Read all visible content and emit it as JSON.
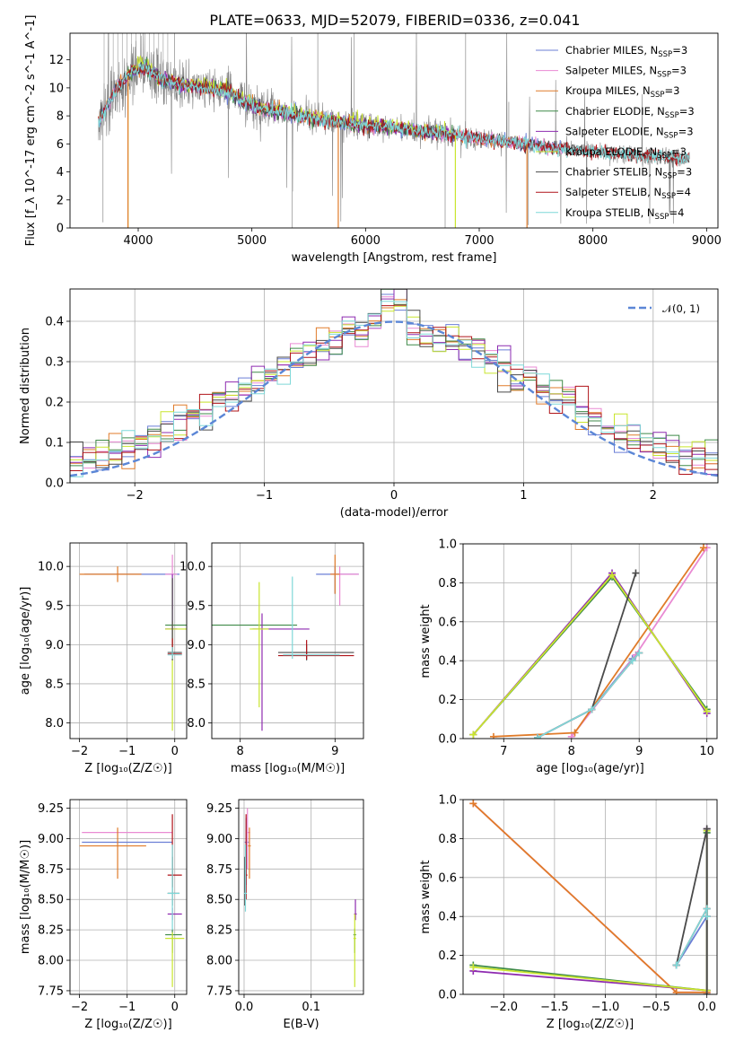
{
  "figure": {
    "title": "PLATE=0633, MJD=52079, FIBERID=0336, z=0.041"
  },
  "models": [
    {
      "name": "Chabrier MILES",
      "nssp": "3",
      "color": "#6b7fd6"
    },
    {
      "name": "Salpeter MILES",
      "nssp": "3",
      "color": "#e98ad3"
    },
    {
      "name": "Kroupa MILES",
      "nssp": "3",
      "color": "#e07b2a"
    },
    {
      "name": "Chabrier ELODIE",
      "nssp": "3",
      "color": "#3f8a48"
    },
    {
      "name": "Salpeter ELODIE",
      "nssp": "3",
      "color": "#8e2bb0"
    },
    {
      "name": "Kroupa ELODIE",
      "nssp": "3",
      "color": "#c9e52e"
    },
    {
      "name": "Chabrier STELIB",
      "nssp": "3",
      "color": "#4a4a4a"
    },
    {
      "name": "Salpeter STELIB",
      "nssp": "4",
      "color": "#b0141a"
    },
    {
      "name": "Kroupa STELIB",
      "nssp": "4",
      "color": "#7fd8d8"
    }
  ],
  "chart_data": [
    {
      "id": "spectrum",
      "type": "line",
      "xlabel": "wavelength [Angstrom, rest frame]",
      "ylabel": "Flux [f_λ 10^-17 erg cm^-2 s^-1 A^-1]",
      "xlim": [
        3400,
        9100
      ],
      "ylim": [
        0,
        13.9
      ],
      "xticks": [
        4000,
        5000,
        6000,
        7000,
        8000,
        9000
      ],
      "yticks": [
        0,
        2,
        4,
        6,
        8,
        10,
        12
      ],
      "data_color": "#808080",
      "data_range": [
        3650,
        8850
      ],
      "continuum": {
        "x": [
          3650,
          3800,
          3950,
          4050,
          4200,
          4400,
          4600,
          4800,
          4900,
          5100,
          5300,
          5500,
          5700,
          6000,
          6300,
          6600,
          7000,
          7400,
          7800,
          8200,
          8600,
          8850
        ],
        "y": [
          7.6,
          9.8,
          11.2,
          11.5,
          10.6,
          10.2,
          10.0,
          9.7,
          9.1,
          8.5,
          8.2,
          7.9,
          7.6,
          7.3,
          7.1,
          6.8,
          6.4,
          6.0,
          5.6,
          5.3,
          5.1,
          4.9
        ]
      },
      "legend": "top-right",
      "grid": false
    },
    {
      "id": "residuals",
      "type": "histogram",
      "xlabel": "(data-model)/error",
      "ylabel": "Normed distribution",
      "xlim": [
        -2.5,
        2.5
      ],
      "ylim": [
        0,
        0.48
      ],
      "xticks": [
        -2,
        -1,
        0,
        1,
        2
      ],
      "yticks": [
        0,
        0.1,
        0.2,
        0.3,
        0.4
      ],
      "bin_width": 0.1,
      "reference": {
        "label": "𝒩(0, 1)",
        "mean": 0,
        "sigma": 1,
        "color": "#5b86d6"
      },
      "legend": "top-right",
      "grid": true
    },
    {
      "id": "age-vs-Z",
      "type": "errorbar",
      "xlabel": "Z [log₁₀(Z/Z☉)]",
      "ylabel": "age  [log₁₀(age/yr)]",
      "xlim": [
        -2.2,
        0.25
      ],
      "ylim": [
        7.8,
        10.3
      ],
      "xticks": [
        -2,
        -1,
        0
      ],
      "yticks": [
        8.0,
        8.5,
        9.0,
        9.5,
        10.0
      ],
      "grid": true
    },
    {
      "id": "age-vs-mass",
      "type": "errorbar",
      "xlabel": "mass [log₁₀(M/M☉)]",
      "ylabel": "",
      "xlim": [
        7.7,
        9.3
      ],
      "ylim": [
        7.8,
        10.3
      ],
      "xticks": [
        8,
        9
      ],
      "yticks": [
        8.0,
        8.5,
        9.0,
        9.5,
        10.0
      ],
      "grid": true
    },
    {
      "id": "weight-vs-age",
      "type": "line",
      "xlabel": "age  [log₁₀(age/yr)]",
      "ylabel": "mass weight",
      "xlim": [
        6.4,
        10.15
      ],
      "ylim": [
        0,
        1
      ],
      "xticks": [
        7,
        8,
        9,
        10
      ],
      "yticks": [
        0,
        0.2,
        0.4,
        0.6,
        0.8,
        1.0
      ],
      "grid": true,
      "series": [
        {
          "model": 0,
          "x": [
            7.5,
            8.3,
            8.9
          ],
          "y": [
            0.005,
            0.15,
            0.41
          ]
        },
        {
          "model": 1,
          "x": [
            8.0,
            8.95,
            10.0
          ],
          "y": [
            0.01,
            0.43,
            0.98
          ]
        },
        {
          "model": 2,
          "x": [
            6.85,
            8.05,
            9.95
          ],
          "y": [
            0.01,
            0.03,
            0.98
          ]
        },
        {
          "model": 3,
          "x": [
            6.55,
            8.6,
            10.0
          ],
          "y": [
            0.02,
            0.83,
            0.15
          ]
        },
        {
          "model": 4,
          "x": [
            6.55,
            8.6,
            10.0
          ],
          "y": [
            0.02,
            0.85,
            0.13
          ]
        },
        {
          "model": 5,
          "x": [
            6.55,
            8.6,
            10.0
          ],
          "y": [
            0.02,
            0.84,
            0.14
          ]
        },
        {
          "model": 6,
          "x": [
            8.3,
            8.95
          ],
          "y": [
            0.15,
            0.85
          ]
        },
        {
          "model": 7,
          "x": [
            7.5,
            8.3,
            8.9,
            9.0
          ],
          "y": [
            0.005,
            0.15,
            0.4,
            0.44
          ]
        },
        {
          "model": 8,
          "x": [
            7.5,
            8.3,
            8.9,
            9.0
          ],
          "y": [
            0.005,
            0.15,
            0.4,
            0.44
          ]
        }
      ]
    },
    {
      "id": "mass-vs-Z",
      "type": "errorbar",
      "xlabel": "Z [log₁₀(Z/Z☉)]",
      "ylabel": "mass [log₁₀(M/M☉)]",
      "xlim": [
        -2.2,
        0.25
      ],
      "ylim": [
        7.72,
        9.32
      ],
      "xticks": [
        -2,
        -1,
        0
      ],
      "yticks": [
        7.75,
        8.0,
        8.25,
        8.5,
        8.75,
        9.0,
        9.25
      ],
      "grid": true
    },
    {
      "id": "mass-vs-ebv",
      "type": "errorbar",
      "xlabel": "E(B-V)",
      "ylabel": "",
      "xlim": [
        -0.008,
        0.178
      ],
      "ylim": [
        7.72,
        9.32
      ],
      "xticks": [
        0.0,
        0.1
      ],
      "yticks": [
        7.75,
        8.0,
        8.25,
        8.5,
        8.75,
        9.0,
        9.25
      ],
      "grid": true
    },
    {
      "id": "weight-vs-Z",
      "type": "line",
      "xlabel": "Z [log₁₀(Z/Z☉)]",
      "ylabel": "mass weight",
      "xlim": [
        -2.4,
        0.1
      ],
      "ylim": [
        0,
        1
      ],
      "xticks": [
        -2.0,
        -1.5,
        -1.0,
        -0.5,
        0.0
      ],
      "yticks": [
        0,
        0.2,
        0.4,
        0.6,
        0.8,
        1.0
      ],
      "grid": true,
      "series": [
        {
          "model": 0,
          "x": [
            -0.3,
            0.0,
            0.0
          ],
          "y": [
            0.15,
            0.4,
            0.02
          ]
        },
        {
          "model": 1,
          "x": [
            -2.3,
            -0.3,
            0.0
          ],
          "y": [
            0.98,
            0.01,
            0.01
          ]
        },
        {
          "model": 2,
          "x": [
            -2.3,
            -0.3,
            0.0
          ],
          "y": [
            0.98,
            0.01,
            0.01
          ]
        },
        {
          "model": 3,
          "x": [
            -2.3,
            0.0,
            0.0
          ],
          "y": [
            0.15,
            0.02,
            0.83
          ]
        },
        {
          "model": 4,
          "x": [
            -2.3,
            0.0,
            0.0
          ],
          "y": [
            0.12,
            0.02,
            0.85
          ]
        },
        {
          "model": 5,
          "x": [
            -2.3,
            0.0,
            0.0
          ],
          "y": [
            0.14,
            0.02,
            0.84
          ]
        },
        {
          "model": 6,
          "x": [
            -0.3,
            0.0,
            0.0
          ],
          "y": [
            0.15,
            0.85,
            0.0
          ]
        },
        {
          "model": 7,
          "x": [
            -0.3,
            0.0,
            0.0
          ],
          "y": [
            0.15,
            0.44,
            0.4
          ]
        },
        {
          "model": 8,
          "x": [
            -0.3,
            0.0,
            0.0
          ],
          "y": [
            0.15,
            0.44,
            0.4
          ]
        }
      ]
    }
  ]
}
